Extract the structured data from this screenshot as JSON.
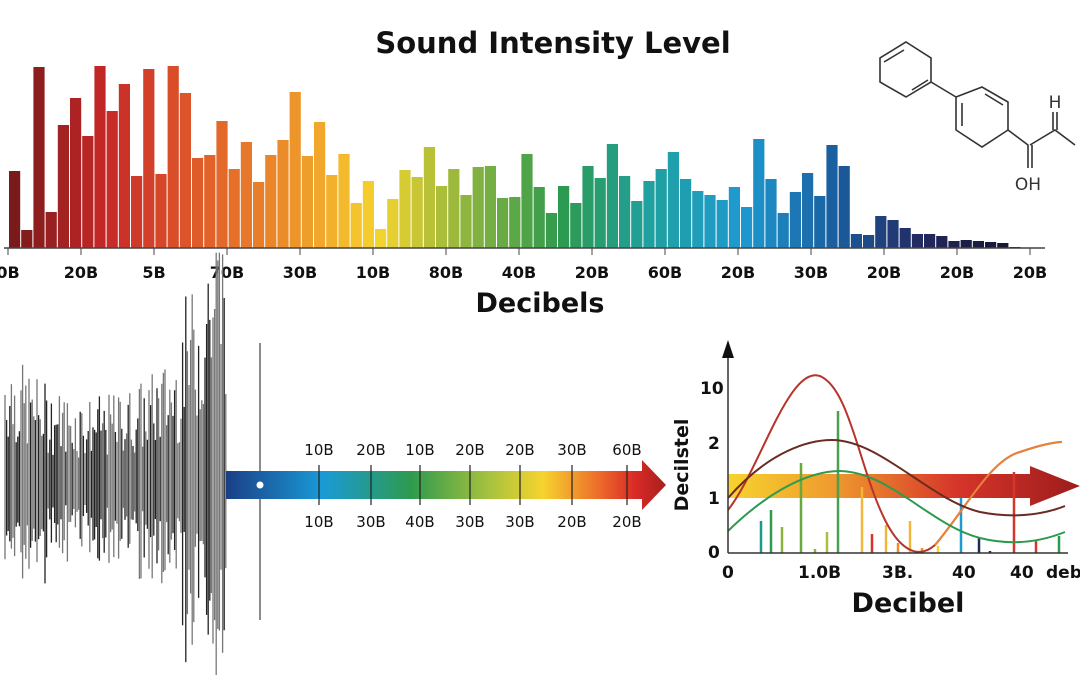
{
  "chart_data": [
    {
      "type": "bar",
      "title": "Sound Intensity Level",
      "xlabel": "Decibels",
      "ylabel": "",
      "x_tick_labels": [
        "0B",
        "20B",
        "5B",
        "70B",
        "30B",
        "10B",
        "80B",
        "40B",
        "20B",
        "60B",
        "20B",
        "30B",
        "20B",
        "20B",
        "20B"
      ],
      "values": [
        77,
        18,
        181,
        36,
        123,
        150,
        112,
        182,
        137,
        164,
        72,
        179,
        74,
        182,
        155,
        90,
        93,
        127,
        79,
        106,
        66,
        93,
        108,
        156,
        92,
        126,
        73,
        94,
        45,
        67,
        19,
        49,
        78,
        71,
        101,
        62,
        79,
        53,
        81,
        82,
        50,
        51,
        94,
        61,
        35,
        62,
        45,
        82,
        70,
        104,
        72,
        47,
        67,
        79,
        96,
        69,
        57,
        53,
        48,
        61,
        41,
        109,
        69,
        35,
        56,
        75,
        52,
        103,
        82,
        14,
        13,
        32,
        28,
        20,
        14,
        14,
        12,
        7,
        8,
        7,
        6,
        5,
        1
      ],
      "color_gradient": [
        "#7a1a1a",
        "#c62828",
        "#e05a2a",
        "#ec8f2a",
        "#f6d42e",
        "#8ab43e",
        "#2e9a4e",
        "#20a0a0",
        "#1e9ad0",
        "#1a5fa0",
        "#23285e",
        "#141630"
      ],
      "grid": false
    },
    {
      "type": "line",
      "xlabel": "Decibel",
      "ylabel": "Decilstel",
      "y_tick_labels": [
        "10",
        "2",
        "1",
        "0"
      ],
      "x_tick_labels": [
        "0",
        "1.0B",
        "3B.",
        "40",
        "40",
        "deb"
      ],
      "series_colors": [
        "#b8332a",
        "#6b2a22",
        "#2e9a4e",
        "#e8843a"
      ]
    }
  ],
  "scale_arrow": {
    "top_labels": [
      "10B",
      "20B",
      "10B",
      "20B",
      "20B",
      "30B",
      "60B"
    ],
    "bottom_labels": [
      "10B",
      "30B",
      "40B",
      "30B",
      "30B",
      "20B",
      "20B"
    ]
  },
  "molecule": {
    "labels": [
      "H",
      "OH"
    ]
  }
}
